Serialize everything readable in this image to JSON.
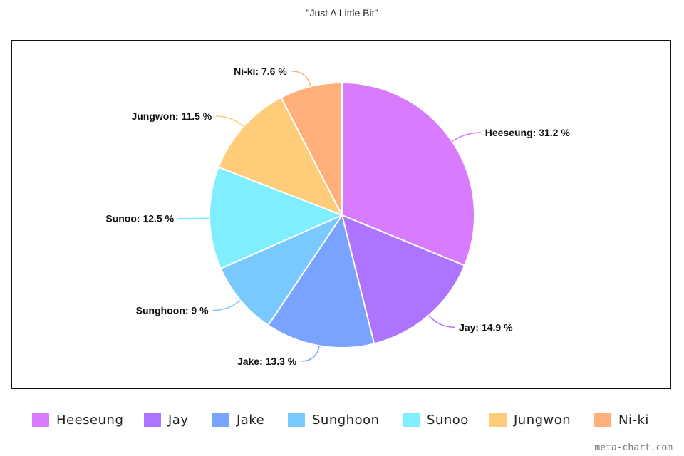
{
  "chart_data": {
    "type": "pie",
    "title": "\"Just A Little Bit\"",
    "slices": [
      {
        "name": "Heeseung",
        "value": 31.2,
        "label": "Heeseung: 31.2 %",
        "color": "#d87bff"
      },
      {
        "name": "Jay",
        "value": 14.9,
        "label": "Jay: 14.9 %",
        "color": "#ad74ff"
      },
      {
        "name": "Jake",
        "value": 13.3,
        "label": "Jake: 13.3 %",
        "color": "#7aa2ff"
      },
      {
        "name": "Sunghoon",
        "value": 9.0,
        "label": "Sunghoon: 9 %",
        "color": "#79c8ff"
      },
      {
        "name": "Sunoo",
        "value": 12.5,
        "label": "Sunoo: 12.5 %",
        "color": "#7fefff"
      },
      {
        "name": "Jungwon",
        "value": 11.5,
        "label": "Jungwon: 11.5 %",
        "color": "#ffcc7a"
      },
      {
        "name": "Ni-ki",
        "value": 7.6,
        "label": "Ni-ki: 7.6 %",
        "color": "#ffb07a"
      }
    ],
    "legend_position": "bottom"
  },
  "watermark": "meta-chart.com"
}
